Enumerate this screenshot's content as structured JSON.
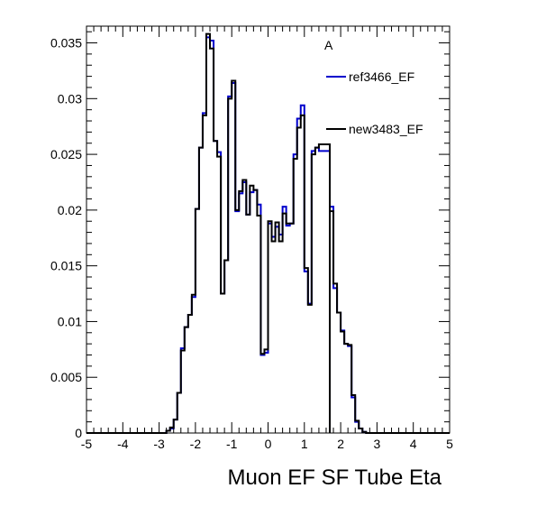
{
  "chart_data": {
    "type": "histogram-step",
    "title": "",
    "xlabel": "Muon EF SF Tube Eta",
    "ylabel": "",
    "xlim": [
      -5,
      5
    ],
    "ylim": [
      0,
      0.0365
    ],
    "grid": false,
    "legend_position": "top-right",
    "bin_width": 0.1,
    "x_ticks": [
      "-5",
      "-4",
      "-3",
      "-2",
      "-1",
      "0",
      "1",
      "2",
      "3",
      "4",
      "5"
    ],
    "y_ticks": [
      "0",
      "0.005",
      "0.01",
      "0.015",
      "0.02",
      "0.025",
      "0.03",
      "0.035"
    ],
    "y_tick_values": [
      0,
      0.005,
      0.01,
      0.015,
      0.02,
      0.025,
      0.03,
      0.035
    ],
    "legend_marker": "A",
    "series": [
      {
        "name": "ref3466_EF",
        "color": "#0000cc",
        "bins": [
          [
            -2.8,
            0.0002
          ],
          [
            -2.7,
            0.0004
          ],
          [
            -2.6,
            0.0012
          ],
          [
            -2.5,
            0.0036
          ],
          [
            -2.4,
            0.0076
          ],
          [
            -2.3,
            0.0095
          ],
          [
            -2.2,
            0.0106
          ],
          [
            -2.1,
            0.0122
          ],
          [
            -2.0,
            0.0201
          ],
          [
            -1.9,
            0.0256
          ],
          [
            -1.8,
            0.0287
          ],
          [
            -1.7,
            0.0355
          ],
          [
            -1.6,
            0.0352
          ],
          [
            -1.5,
            0.0262
          ],
          [
            -1.4,
            0.0252
          ],
          [
            -1.3,
            0.0125
          ],
          [
            -1.2,
            0.0155
          ],
          [
            -1.1,
            0.0302
          ],
          [
            -1.0,
            0.0314
          ],
          [
            -0.9,
            0.0199
          ],
          [
            -0.8,
            0.0215
          ],
          [
            -0.7,
            0.0225
          ],
          [
            -0.6,
            0.0196
          ],
          [
            -0.5,
            0.0216
          ],
          [
            -0.4,
            0.0218
          ],
          [
            -0.3,
            0.0205
          ],
          [
            -0.2,
            0.007
          ],
          [
            -0.1,
            0.0072
          ],
          [
            0.0,
            0.0188
          ],
          [
            0.1,
            0.0176
          ],
          [
            0.2,
            0.0185
          ],
          [
            0.3,
            0.0178
          ],
          [
            0.4,
            0.0203
          ],
          [
            0.5,
            0.0186
          ],
          [
            0.6,
            0.0188
          ],
          [
            0.7,
            0.025
          ],
          [
            0.8,
            0.0282
          ],
          [
            0.9,
            0.0294
          ],
          [
            1.0,
            0.0145
          ],
          [
            1.1,
            0.0116
          ],
          [
            1.2,
            0.0253
          ],
          [
            1.3,
            0.0256
          ],
          [
            1.4,
            0.0253
          ],
          [
            1.7,
            0.0203
          ],
          [
            1.8,
            0.013
          ],
          [
            1.9,
            0.0108
          ],
          [
            2.0,
            0.0092
          ],
          [
            2.1,
            0.008
          ],
          [
            2.2,
            0.0078
          ],
          [
            2.3,
            0.0032
          ],
          [
            2.4,
            0.001
          ],
          [
            2.5,
            0.0004
          ],
          [
            2.6,
            0.0001
          ]
        ]
      },
      {
        "name": "new3483_EF",
        "color": "#000000",
        "bins": [
          [
            -2.8,
            0.0002
          ],
          [
            -2.7,
            0.0005
          ],
          [
            -2.6,
            0.0012
          ],
          [
            -2.5,
            0.0036
          ],
          [
            -2.4,
            0.0074
          ],
          [
            -2.3,
            0.0095
          ],
          [
            -2.2,
            0.0106
          ],
          [
            -2.1,
            0.0124
          ],
          [
            -2.0,
            0.0201
          ],
          [
            -1.9,
            0.0256
          ],
          [
            -1.8,
            0.0285
          ],
          [
            -1.7,
            0.0358
          ],
          [
            -1.6,
            0.0345
          ],
          [
            -1.5,
            0.0262
          ],
          [
            -1.4,
            0.0248
          ],
          [
            -1.3,
            0.0125
          ],
          [
            -1.2,
            0.0155
          ],
          [
            -1.1,
            0.03
          ],
          [
            -1.0,
            0.0316
          ],
          [
            -0.9,
            0.02
          ],
          [
            -0.8,
            0.0217
          ],
          [
            -0.7,
            0.0227
          ],
          [
            -0.6,
            0.0196
          ],
          [
            -0.5,
            0.0222
          ],
          [
            -0.4,
            0.0218
          ],
          [
            -0.3,
            0.0195
          ],
          [
            -0.2,
            0.0071
          ],
          [
            -0.1,
            0.0075
          ],
          [
            0.0,
            0.019
          ],
          [
            0.1,
            0.0172
          ],
          [
            0.2,
            0.0189
          ],
          [
            0.3,
            0.0172
          ],
          [
            0.4,
            0.0197
          ],
          [
            0.5,
            0.0188
          ],
          [
            0.6,
            0.0188
          ],
          [
            0.7,
            0.0246
          ],
          [
            0.8,
            0.0274
          ],
          [
            0.9,
            0.0285
          ],
          [
            1.0,
            0.0148
          ],
          [
            1.1,
            0.0115
          ],
          [
            1.2,
            0.025
          ],
          [
            1.3,
            0.0256
          ],
          [
            1.4,
            0.0259
          ],
          [
            1.7,
            0.0199
          ],
          [
            1.8,
            0.0134
          ],
          [
            1.9,
            0.0108
          ],
          [
            2.0,
            0.0091
          ],
          [
            2.1,
            0.008
          ],
          [
            2.2,
            0.0079
          ],
          [
            2.3,
            0.0034
          ],
          [
            2.4,
            0.0011
          ],
          [
            2.5,
            0.0004
          ],
          [
            2.6,
            0.0001
          ]
        ]
      }
    ]
  }
}
